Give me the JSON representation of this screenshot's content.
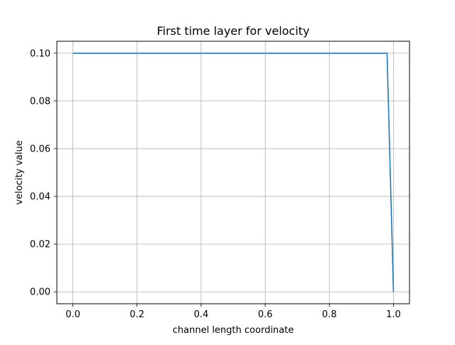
{
  "chart_data": {
    "type": "line",
    "title": "First time layer for velocity",
    "xlabel": "channel length coordinate",
    "ylabel": "velocity value",
    "xlim": [
      -0.05,
      1.05
    ],
    "ylim": [
      -0.005,
      0.105
    ],
    "x_ticks": [
      0.0,
      0.2,
      0.4,
      0.6,
      0.8,
      1.0
    ],
    "x_tick_labels": [
      "0.0",
      "0.2",
      "0.4",
      "0.6",
      "0.8",
      "1.0"
    ],
    "y_ticks": [
      0.0,
      0.02,
      0.04,
      0.06,
      0.08,
      0.1
    ],
    "y_tick_labels": [
      "0.00",
      "0.02",
      "0.04",
      "0.06",
      "0.08",
      "0.10"
    ],
    "grid": true,
    "series": [
      {
        "color": "#1f77b4",
        "x": [
          0.0,
          0.98,
          1.0
        ],
        "y": [
          0.1,
          0.1,
          0.0
        ]
      }
    ]
  }
}
